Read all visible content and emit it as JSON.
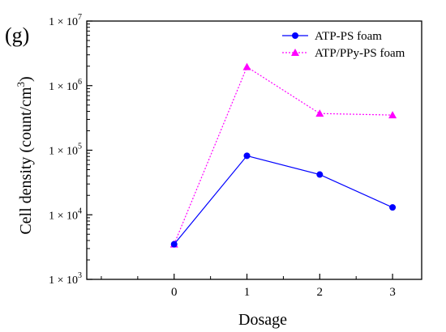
{
  "panel_label": "(g)",
  "chart_data": {
    "type": "line",
    "xlabel": "Dosage",
    "ylabel_main": "Cell density (count/cm",
    "ylabel_sup": "3",
    "ylabel_close": ")",
    "y_scale": "log",
    "ylim": [
      1000,
      10000000
    ],
    "xlim": [
      -1.2,
      3.4
    ],
    "x_ticks": [
      0,
      1,
      2,
      3
    ],
    "x_tick_labels": [
      "0",
      "1",
      "2",
      "3"
    ],
    "y_ticks": [
      {
        "value": 1000,
        "base": "1 × 10",
        "exp": "3"
      },
      {
        "value": 10000,
        "base": "1 × 10",
        "exp": "4"
      },
      {
        "value": 100000,
        "base": "1 × 10",
        "exp": "5"
      },
      {
        "value": 1000000,
        "base": "1 × 10",
        "exp": "6"
      },
      {
        "value": 10000000,
        "base": "1 × 10",
        "exp": "7"
      }
    ],
    "grid": false,
    "legend_position": "top-right",
    "series": [
      {
        "name": "ATP-PS foam",
        "color": "#0000ff",
        "line_style": "solid",
        "marker": "circle",
        "x": [
          0,
          1,
          2,
          3
        ],
        "y": [
          3500,
          82000,
          42000,
          13000
        ]
      },
      {
        "name": "ATP/PPy-PS foam",
        "color": "#ff00ff",
        "line_style": "dotted",
        "marker": "triangle",
        "x": [
          0,
          1,
          2,
          3
        ],
        "y": [
          3500,
          1950000,
          370000,
          350000
        ]
      }
    ]
  }
}
